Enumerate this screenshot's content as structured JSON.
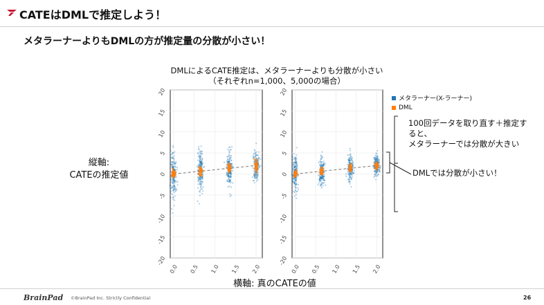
{
  "slide": {
    "title": "CATEはDMLで推定しよう！",
    "subtitle": "メタラーナーよりもDMLの方が推定量の分散が小さい！",
    "y_axis_note_line1": "縦軸:",
    "y_axis_note_line2": "CATEの推定値",
    "x_axis_note": "横軸: 真のCATEの値",
    "annotation_variance_large": [
      "100回データを取り直す＋推定す",
      "ると、",
      "メタラーナーでは分散が大きい"
    ],
    "annotation_variance_small": "DMLでは分散が小さい！",
    "footer": {
      "logo": "BrainPad",
      "copyright": "©BrainPad Inc.  Strictly Confidential",
      "page_number": "26"
    }
  },
  "colors": {
    "metalearner": "#1f77b4",
    "dml": "#ff7f0e",
    "accent_red": "#c8102e",
    "trend": "#8c8c8c"
  },
  "chart_data": [
    {
      "type": "scatter",
      "title": "DMLによるCATE推定は、メタラーナーよりも分散が小さい\n（それぞれn=1,000、5,000の場合）",
      "xlabel": "",
      "ylabel": "",
      "ylim": [
        -20,
        20
      ],
      "yticks": [
        20,
        15,
        10,
        5,
        0,
        -5,
        -10,
        -15,
        -20
      ],
      "xticks": [
        0.0,
        0.5,
        1.0,
        1.5,
        2.0
      ],
      "x_tick_labels": [
        "0.0",
        "0.5",
        "1.0",
        "1.5",
        "2.0"
      ],
      "legend": "top-right",
      "series": [
        {
          "name": "メタラーナー(X-ラーナー)",
          "x": [
            0.0,
            0.65,
            1.35,
            2.0
          ],
          "spread_sd": [
            3.0,
            2.5,
            2.0,
            1.8
          ],
          "center": [
            0.0,
            0.65,
            1.35,
            2.0
          ]
        },
        {
          "name": "DML",
          "x": [
            0.0,
            0.65,
            1.35,
            2.0
          ],
          "spread_sd": [
            0.5,
            0.6,
            0.6,
            0.7
          ],
          "center": [
            0.0,
            0.65,
            1.35,
            2.0
          ]
        }
      ]
    },
    {
      "type": "scatter",
      "ylim": [
        -20,
        20
      ],
      "yticks": [
        20,
        15,
        10,
        5,
        0,
        -5,
        -10,
        -15,
        -20
      ],
      "xticks": [
        0.0,
        0.5,
        1.0,
        1.5,
        2.0
      ],
      "x_tick_labels": [
        "0.0",
        "0.5",
        "1.0",
        "1.5",
        "2.0"
      ],
      "series": [
        {
          "name": "メタラーナー(X-ラーナー)",
          "x": [
            0.0,
            0.65,
            1.35,
            2.0
          ],
          "spread_sd": [
            2.0,
            1.6,
            1.4,
            1.2
          ],
          "center": [
            0.0,
            0.65,
            1.35,
            2.0
          ]
        },
        {
          "name": "DML",
          "x": [
            0.0,
            0.65,
            1.35,
            2.0
          ],
          "spread_sd": [
            0.3,
            0.35,
            0.4,
            0.4
          ],
          "center": [
            0.0,
            0.65,
            1.35,
            2.0
          ]
        }
      ]
    }
  ]
}
